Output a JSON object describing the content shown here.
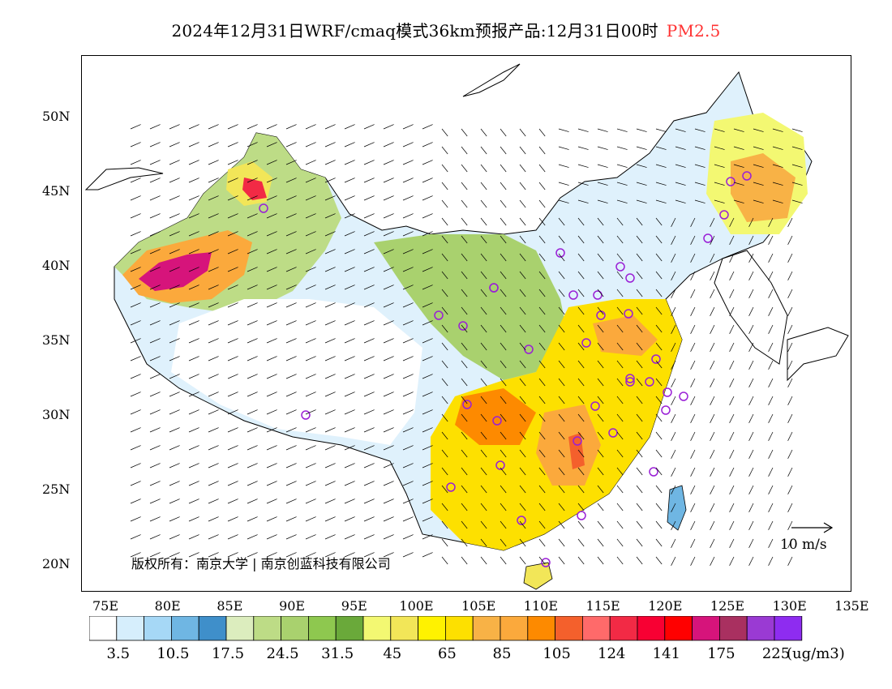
{
  "title": {
    "main": "2024年12月31日WRF/cmaq模式36km预报产品:12月31日00时",
    "pollutant": "PM2.5",
    "pollutant_color": "#ff3333"
  },
  "axes": {
    "lat_labels": [
      "50N",
      "45N",
      "40N",
      "35N",
      "30N",
      "25N",
      "20N"
    ],
    "lon_labels": [
      "75E",
      "80E",
      "85E",
      "90E",
      "95E",
      "100E",
      "105E",
      "110E",
      "115E",
      "120E",
      "125E",
      "130E",
      "135E"
    ]
  },
  "copyright": "版权所有：南京大学 | 南京创蓝科技有限公司",
  "wind_reference": "10 m/s",
  "legend": {
    "colors": [
      "#ffffff",
      "#d6eefc",
      "#a6d8f6",
      "#6fb6e3",
      "#3f8fca",
      "#dcedbe",
      "#bddc86",
      "#a9d16e",
      "#8ec84f",
      "#6aa93a",
      "#f3f872",
      "#f2e658",
      "#fff200",
      "#fde000",
      "#f8b246",
      "#fba93c",
      "#fd8a00",
      "#f4602c",
      "#ff6a6a",
      "#f22a45",
      "#f80033",
      "#ff0000",
      "#d6147b",
      "#a93060",
      "#9a3ad3",
      "#8e2cf0"
    ],
    "labels": [
      "3.5",
      "10.5",
      "17.5",
      "24.5",
      "31.5",
      "45",
      "65",
      "85",
      "105",
      "124",
      "141",
      "175",
      "225"
    ],
    "unit": "(ug/m3)"
  },
  "stations": 37
}
